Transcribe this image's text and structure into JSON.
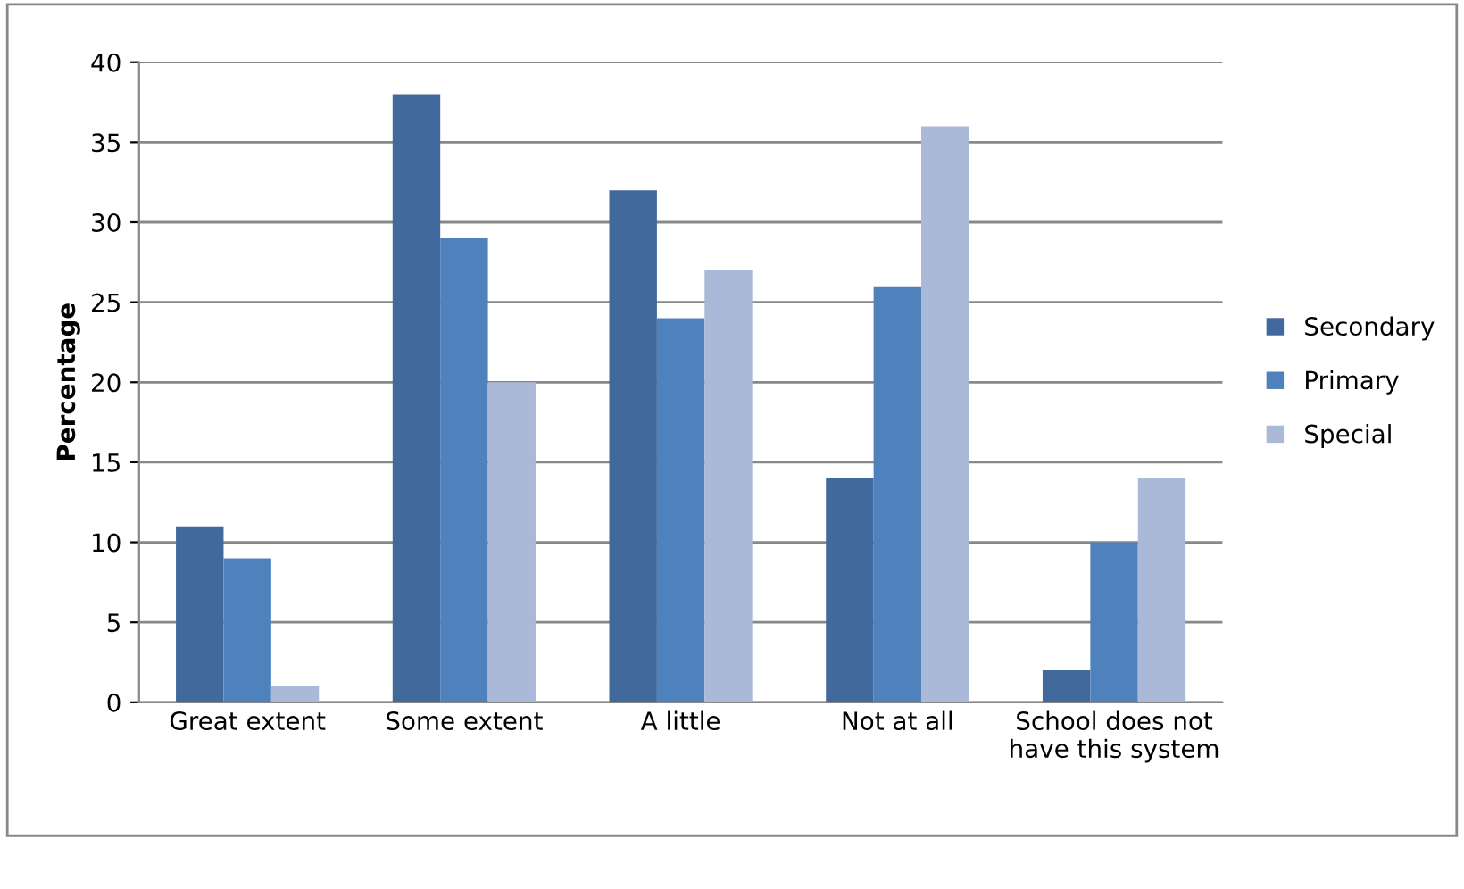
{
  "chart_data": {
    "type": "bar",
    "ylabel": "Percentage",
    "categories": [
      "Great extent",
      "Some extent",
      "A little",
      "Not at all",
      "School does not\nhave this system"
    ],
    "series": [
      {
        "name": "Secondary",
        "color": "#41699c",
        "values": [
          11,
          38,
          32,
          14,
          2
        ]
      },
      {
        "name": "Primary",
        "color": "#4f81bd",
        "values": [
          9,
          29,
          24,
          26,
          10
        ]
      },
      {
        "name": "Special",
        "color": "#aab9d8",
        "values": [
          1,
          20,
          27,
          36,
          14
        ]
      }
    ],
    "ylim": [
      0,
      40
    ],
    "yticks": [
      0,
      5,
      10,
      15,
      20,
      25,
      30,
      35,
      40
    ],
    "grid": "y",
    "legend": "right"
  }
}
